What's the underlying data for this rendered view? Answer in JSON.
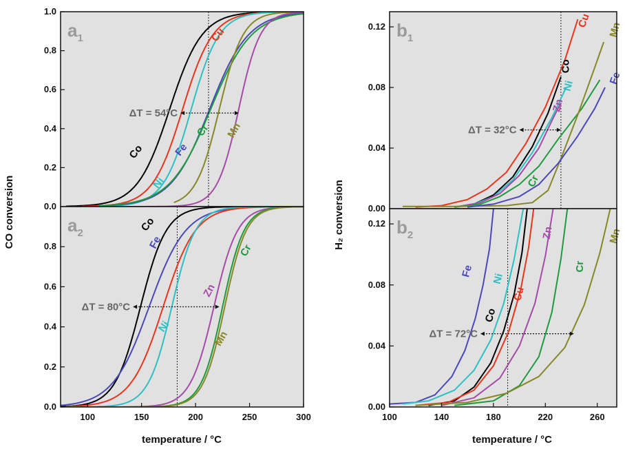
{
  "figure": {
    "ylabel_left": "CO conversion",
    "ylabel_right": "H₂ conversion",
    "xlabel": "temperature / °C"
  },
  "colors": {
    "Co": "#000000",
    "Cu": "#e8341c",
    "Ni": "#2cc0c4",
    "Fe": "#4a48b8",
    "Cr": "#1e9a3e",
    "Mn": "#878726",
    "Zn": "#a64aa8",
    "background": "#e1e1e1"
  },
  "chart_data": [
    {
      "id": "a1",
      "panel_label": "a",
      "panel_sub": "1",
      "type": "line",
      "xlim": [
        75,
        300
      ],
      "ylim": [
        0,
        1.0
      ],
      "yticks": [
        "0.0",
        "0.2",
        "0.4",
        "0.6",
        "0.8",
        "1.0"
      ],
      "vline_x": 212,
      "delta": {
        "text": "ΔT = 54°C",
        "y": 0.48,
        "x_from": 186,
        "x_to": 240
      },
      "series": [
        {
          "name": "Co",
          "color": "#000000",
          "T0": 176,
          "k": 15,
          "xmin": 80,
          "label_x": 145,
          "label_y": 0.28,
          "label_rot": -52
        },
        {
          "name": "Cu",
          "color": "#e8341c",
          "T0": 188,
          "k": 14,
          "xmin": 95,
          "label_x": 221,
          "label_y": 0.88,
          "label_rot": -52
        },
        {
          "name": "Ni",
          "color": "#2cc0c4",
          "T0": 196,
          "k": 13,
          "xmin": 110,
          "label_x": 166,
          "label_y": 0.12,
          "label_rot": -52
        },
        {
          "name": "Fe",
          "color": "#4a48b8",
          "T0": 213,
          "k": 18,
          "xmin": 110,
          "label_x": 187,
          "label_y": 0.29,
          "label_rot": -52
        },
        {
          "name": "Cr",
          "color": "#1e9a3e",
          "T0": 214,
          "k": 19,
          "xmin": 110,
          "label_x": 207,
          "label_y": 0.39,
          "label_rot": -55
        },
        {
          "name": "Mn",
          "color": "#878726",
          "T0": 222,
          "k": 11,
          "xmin": 180,
          "label_x": 236,
          "label_y": 0.39,
          "label_rot": -60
        },
        {
          "name": "Zn",
          "color": "#a64aa8",
          "T0": 240,
          "k": 10,
          "xmin": 110,
          "label_x": 0,
          "label_y": 0,
          "label_rot": 0,
          "hide_label": true
        }
      ]
    },
    {
      "id": "a2",
      "panel_label": "a",
      "panel_sub": "2",
      "type": "line",
      "xlim": [
        75,
        300
      ],
      "ylim": [
        0,
        1.0
      ],
      "yticks": [
        "0.0",
        "0.2",
        "0.4",
        "0.6",
        "0.8"
      ],
      "xticks": [
        "100",
        "150",
        "200",
        "250",
        "300"
      ],
      "vline_x": 183,
      "delta": {
        "text": "ΔT = 80°C",
        "y": 0.5,
        "x_from": 142,
        "x_to": 222
      },
      "series": [
        {
          "name": "Co",
          "color": "#000000",
          "T0": 149,
          "k": 12,
          "xmin": 75,
          "label_x": 156,
          "label_y": 0.91,
          "label_rot": -52
        },
        {
          "name": "Fe",
          "color": "#4a48b8",
          "T0": 157,
          "k": 17,
          "xmin": 75,
          "label_x": 163,
          "label_y": 0.82,
          "label_rot": -62
        },
        {
          "name": "Cu",
          "color": "#e8341c",
          "T0": 170,
          "k": 15,
          "xmin": 80,
          "label_x": 0,
          "label_y": 0,
          "label_rot": 0,
          "hide_label": true
        },
        {
          "name": "Ni",
          "color": "#2cc0c4",
          "T0": 178,
          "k": 11,
          "xmin": 80,
          "label_x": 171,
          "label_y": 0.4,
          "label_rot": -55
        },
        {
          "name": "Zn",
          "color": "#a64aa8",
          "T0": 217,
          "k": 11,
          "xmin": 80,
          "label_x": 213,
          "label_y": 0.58,
          "label_rot": -62
        },
        {
          "name": "Cr",
          "color": "#1e9a3e",
          "T0": 225,
          "k": 10,
          "xmin": 80,
          "label_x": 247,
          "label_y": 0.78,
          "label_rot": -62
        },
        {
          "name": "Mn",
          "color": "#878726",
          "T0": 227,
          "k": 10,
          "xmin": 80,
          "label_x": 224,
          "label_y": 0.34,
          "label_rot": -60
        }
      ]
    },
    {
      "id": "b1",
      "panel_label": "b",
      "panel_sub": "1",
      "type": "line",
      "xlim": [
        100,
        275
      ],
      "ylim": [
        0,
        0.13
      ],
      "yticks": [
        "0.00",
        "0.04",
        "0.08",
        "0.12"
      ],
      "vline_x": 232,
      "delta": {
        "text": "ΔT = 32°C",
        "y": 0.052,
        "x_from": 200,
        "x_to": 232
      },
      "series": [
        {
          "name": "Cu",
          "color": "#e8341c",
          "x": [
            120,
            140,
            160,
            175,
            190,
            205,
            220,
            235,
            245
          ],
          "y": [
            0.001,
            0.002,
            0.006,
            0.013,
            0.024,
            0.043,
            0.067,
            0.098,
            0.125
          ],
          "label_x": 250,
          "label_y": 0.124,
          "label_rot": -70
        },
        {
          "name": "Co",
          "color": "#000000",
          "x": [
            150,
            165,
            180,
            195,
            210,
            222,
            232
          ],
          "y": [
            0.001,
            0.003,
            0.009,
            0.021,
            0.041,
            0.063,
            0.087
          ],
          "label_x": 236,
          "label_y": 0.094,
          "label_rot": -90
        },
        {
          "name": "Ni",
          "color": "#2cc0c4",
          "x": [
            150,
            165,
            180,
            195,
            210,
            225,
            236
          ],
          "y": [
            0.001,
            0.003,
            0.008,
            0.019,
            0.037,
            0.06,
            0.08
          ],
          "label_x": 238,
          "label_y": 0.081,
          "label_rot": -75
        },
        {
          "name": "Zn",
          "color": "#a64aa8",
          "x": [
            150,
            170,
            185,
            200,
            215,
            225,
            232
          ],
          "y": [
            0.001,
            0.004,
            0.01,
            0.022,
            0.04,
            0.058,
            0.07
          ],
          "label_x": 230,
          "label_y": 0.068,
          "label_rot": -75
        },
        {
          "name": "Cr",
          "color": "#1e9a3e",
          "x": [
            150,
            170,
            185,
            200,
            215,
            230,
            248,
            262
          ],
          "y": [
            0.001,
            0.003,
            0.008,
            0.016,
            0.028,
            0.046,
            0.066,
            0.085
          ],
          "label_x": 211,
          "label_y": 0.018,
          "label_rot": -65
        },
        {
          "name": "Mn",
          "color": "#878726",
          "x": [
            110,
            150,
            190,
            210,
            222,
            232,
            245,
            258,
            265
          ],
          "y": [
            0.0015,
            0.0015,
            0.002,
            0.004,
            0.012,
            0.033,
            0.062,
            0.093,
            0.11
          ],
          "label_x": 274,
          "label_y": 0.118,
          "label_rot": -75
        },
        {
          "name": "Fe",
          "color": "#4a48b8",
          "x": [
            160,
            180,
            200,
            215,
            230,
            245,
            258,
            266
          ],
          "y": [
            0.001,
            0.003,
            0.008,
            0.016,
            0.03,
            0.048,
            0.066,
            0.08
          ],
          "label_x": 274,
          "label_y": 0.086,
          "label_rot": -70
        }
      ]
    },
    {
      "id": "b2",
      "panel_label": "b",
      "panel_sub": "2",
      "type": "line",
      "xlim": [
        100,
        275
      ],
      "ylim": [
        0,
        0.13
      ],
      "yticks": [
        "0.00",
        "0.04",
        "0.08",
        "0.12"
      ],
      "xticks": [
        "100",
        "140",
        "180",
        "220",
        "260"
      ],
      "vline_x": 191,
      "delta": {
        "text": "ΔT = 72°C",
        "y": 0.048,
        "x_from": 170,
        "x_to": 242
      },
      "series": [
        {
          "name": "Fe",
          "color": "#4a48b8",
          "x": [
            100,
            120,
            135,
            148,
            158,
            166,
            172,
            177,
            180
          ],
          "y": [
            0.002,
            0.003,
            0.008,
            0.02,
            0.037,
            0.058,
            0.08,
            0.104,
            0.13
          ],
          "label_x": 160,
          "label_y": 0.089,
          "label_rot": -75
        },
        {
          "name": "Ni",
          "color": "#2cc0c4",
          "x": [
            110,
            130,
            150,
            165,
            178,
            188,
            196,
            203
          ],
          "y": [
            0.002,
            0.004,
            0.011,
            0.024,
            0.044,
            0.068,
            0.097,
            0.13
          ],
          "label_x": 184,
          "label_y": 0.084,
          "label_rot": -75
        },
        {
          "name": "Co",
          "color": "#000000",
          "x": [
            130,
            150,
            165,
            178,
            188,
            196,
            202,
            206
          ],
          "y": [
            0.001,
            0.004,
            0.013,
            0.029,
            0.05,
            0.074,
            0.101,
            0.13
          ],
          "label_x": 178,
          "label_y": 0.06,
          "label_rot": -75
        },
        {
          "name": "Cu",
          "color": "#e8341c",
          "x": [
            120,
            145,
            165,
            180,
            192,
            201,
            207,
            211
          ],
          "y": [
            0.001,
            0.003,
            0.011,
            0.027,
            0.05,
            0.077,
            0.104,
            0.13
          ],
          "label_x": 200,
          "label_y": 0.074,
          "label_rot": -75
        },
        {
          "name": "Zn",
          "color": "#a64aa8",
          "x": [
            140,
            165,
            185,
            200,
            212,
            220,
            226
          ],
          "y": [
            0.001,
            0.006,
            0.019,
            0.04,
            0.068,
            0.099,
            0.13
          ],
          "label_x": 222,
          "label_y": 0.114,
          "label_rot": -80
        },
        {
          "name": "Cr",
          "color": "#1e9a3e",
          "x": [
            150,
            180,
            200,
            215,
            225,
            232,
            237
          ],
          "y": [
            0.001,
            0.004,
            0.014,
            0.033,
            0.062,
            0.097,
            0.13
          ],
          "label_x": 247,
          "label_y": 0.092,
          "label_rot": -90
        },
        {
          "name": "Mn",
          "color": "#878726",
          "x": [
            120,
            160,
            190,
            215,
            235,
            250,
            262,
            270
          ],
          "y": [
            0.001,
            0.003,
            0.009,
            0.02,
            0.039,
            0.067,
            0.101,
            0.13
          ],
          "label_x": 274,
          "label_y": 0.112,
          "label_rot": -75
        }
      ]
    }
  ]
}
